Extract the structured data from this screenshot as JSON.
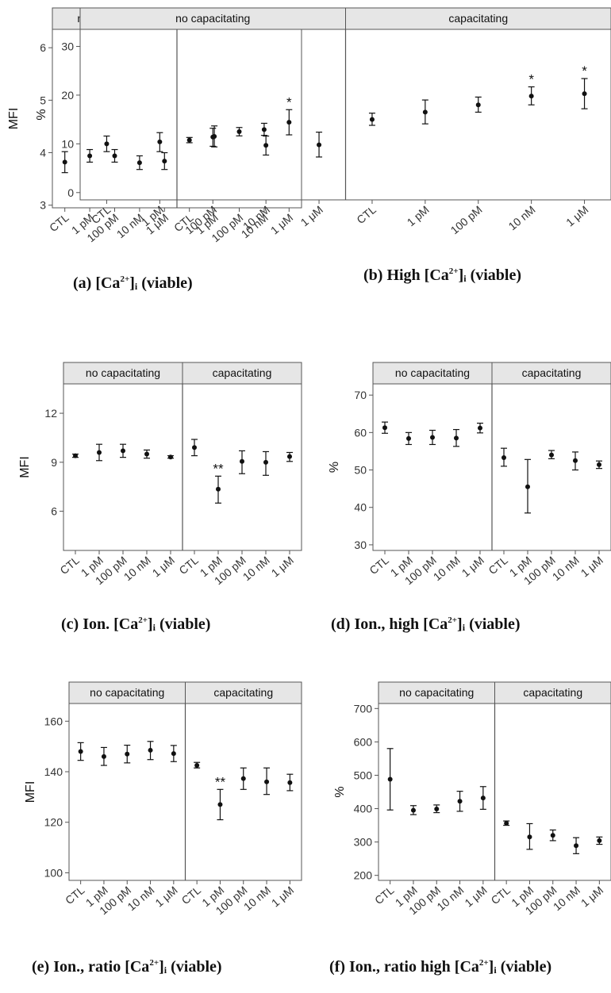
{
  "facets": [
    "no capacitating",
    "capacitating"
  ],
  "chart_data": [
    {
      "id": "a",
      "type": "scatter",
      "ylabel": "MFI",
      "ylim": [
        2.95,
        6.35
      ],
      "yticks": [
        3,
        4,
        5,
        6
      ],
      "categories": [
        "CTL",
        "1 pM",
        "100 pM",
        "10 nM",
        "1 μM"
      ],
      "series": [
        {
          "facet": "no capacitating",
          "values": [
            3.82,
            3.94,
            3.94,
            3.81,
            3.84
          ],
          "lower": [
            3.62,
            3.82,
            3.82,
            3.68,
            3.68
          ],
          "upper": [
            4.02,
            4.06,
            4.06,
            3.94,
            4.0
          ],
          "annotations": [
            "",
            "",
            "",
            "",
            ""
          ]
        },
        {
          "facet": "capacitating",
          "values": [
            4.24,
            4.31,
            4.4,
            4.44,
            4.58
          ],
          "lower": [
            4.19,
            4.11,
            4.32,
            4.33,
            4.34
          ],
          "upper": [
            4.29,
            4.51,
            4.48,
            4.56,
            4.82
          ],
          "annotations": [
            "",
            "",
            "",
            "",
            "*"
          ]
        }
      ],
      "caption": {
        "prefix": "(a) [Ca",
        "sup": "2+",
        "mid": "]",
        "sub": "i",
        "suffix": " (viable)"
      }
    },
    {
      "id": "b",
      "type": "scatter",
      "ylabel": "%",
      "ylim": [
        -1.5,
        33.5
      ],
      "yticks": [
        0,
        10,
        20,
        30
      ],
      "categories": [
        "CTL",
        "1 pM",
        "100 pM",
        "10 nM",
        "1 μM"
      ],
      "series": [
        {
          "facet": "no capacitating",
          "values": [
            10.0,
            10.4,
            11.4,
            9.7,
            9.8
          ],
          "lower": [
            8.4,
            8.4,
            9.5,
            7.7,
            7.3
          ],
          "upper": [
            11.6,
            12.3,
            13.2,
            11.6,
            12.4
          ],
          "annotations": [
            "",
            "",
            "",
            "",
            ""
          ]
        },
        {
          "facet": "capacitating",
          "values": [
            15.0,
            16.5,
            18.0,
            19.8,
            20.3
          ],
          "lower": [
            13.8,
            14.1,
            16.5,
            18.0,
            17.2
          ],
          "upper": [
            16.3,
            19.0,
            19.6,
            21.7,
            23.4
          ],
          "annotations": [
            "",
            "",
            "",
            "*",
            "*"
          ]
        }
      ],
      "caption": {
        "prefix": "(b) High [Ca",
        "sup": "2+",
        "mid": "]",
        "sub": "i",
        "suffix": " (viable)"
      }
    },
    {
      "id": "c",
      "type": "scatter",
      "ylabel": "MFI",
      "ylim": [
        3.6,
        13.8
      ],
      "yticks": [
        6,
        9,
        12
      ],
      "categories": [
        "CTL",
        "1 pM",
        "100 pM",
        "10 nM",
        "1 μM"
      ],
      "series": [
        {
          "facet": "no capacitating",
          "values": [
            9.4,
            9.6,
            9.7,
            9.5,
            9.32
          ],
          "lower": [
            9.3,
            9.1,
            9.3,
            9.25,
            9.25
          ],
          "upper": [
            9.5,
            10.1,
            10.1,
            9.75,
            9.4
          ],
          "annotations": [
            "",
            "",
            "",
            "",
            ""
          ]
        },
        {
          "facet": "capacitating",
          "values": [
            9.9,
            7.35,
            9.05,
            9.0,
            9.35
          ],
          "lower": [
            9.4,
            6.5,
            8.3,
            8.2,
            9.05
          ],
          "upper": [
            10.4,
            8.15,
            9.7,
            9.65,
            9.6
          ],
          "annotations": [
            "",
            "**",
            "",
            "",
            ""
          ]
        }
      ],
      "caption": {
        "prefix": "(c) Ion. [Ca",
        "sup": "2+",
        "mid": "]",
        "sub": "i",
        "suffix": " (viable)"
      }
    },
    {
      "id": "d",
      "type": "scatter",
      "ylabel": "%",
      "ylim": [
        28.5,
        73
      ],
      "yticks": [
        30,
        40,
        50,
        60,
        70
      ],
      "categories": [
        "CTL",
        "1 pM",
        "100 pM",
        "10 nM",
        "1 μM"
      ],
      "series": [
        {
          "facet": "no capacitating",
          "values": [
            61.3,
            58.4,
            58.7,
            58.5,
            61.2
          ],
          "lower": [
            59.8,
            56.8,
            56.8,
            56.3,
            59.9
          ],
          "upper": [
            62.8,
            60.0,
            60.6,
            60.8,
            62.5
          ],
          "annotations": [
            "",
            "",
            "",
            "",
            ""
          ]
        },
        {
          "facet": "capacitating",
          "values": [
            53.3,
            45.5,
            54.0,
            52.5,
            51.4
          ],
          "lower": [
            51.0,
            38.5,
            53.0,
            50.0,
            50.4
          ],
          "upper": [
            55.8,
            52.8,
            55.2,
            54.8,
            52.4
          ],
          "annotations": [
            "",
            "",
            "",
            "",
            ""
          ]
        }
      ],
      "caption": {
        "prefix": "(d) Ion., high [Ca",
        "sup": "2+",
        "mid": "]",
        "sub": "i",
        "suffix": " (viable)"
      }
    },
    {
      "id": "e",
      "type": "scatter",
      "ylabel": "MFI",
      "ylim": [
        97,
        167
      ],
      "yticks": [
        100,
        120,
        140,
        160
      ],
      "categories": [
        "CTL",
        "1 pM",
        "100 pM",
        "10 nM",
        "1 μM"
      ],
      "series": [
        {
          "facet": "no capacitating",
          "values": [
            148.0,
            146.0,
            147.0,
            148.5,
            147.2
          ],
          "lower": [
            144.5,
            142.5,
            143.5,
            144.8,
            144.0
          ],
          "upper": [
            151.5,
            149.6,
            150.5,
            152.0,
            150.4
          ],
          "annotations": [
            "",
            "",
            "",
            "",
            ""
          ]
        },
        {
          "facet": "capacitating",
          "values": [
            142.5,
            127.0,
            137.3,
            136.0,
            135.7
          ],
          "lower": [
            141.5,
            121.0,
            133.0,
            131.0,
            132.5
          ],
          "upper": [
            143.7,
            133.0,
            141.5,
            141.5,
            139.0
          ],
          "annotations": [
            "",
            "**",
            "",
            "",
            ""
          ]
        }
      ],
      "caption": {
        "prefix": "(e) Ion., ratio [Ca",
        "sup": "2+",
        "mid": "]",
        "sub": "i",
        "suffix": " (viable)"
      }
    },
    {
      "id": "f",
      "type": "scatter",
      "ylabel": "%",
      "ylim": [
        185,
        715
      ],
      "yticks": [
        200,
        300,
        400,
        500,
        600,
        700
      ],
      "categories": [
        "CTL",
        "1 pM",
        "100 pM",
        "10 nM",
        "1 μM"
      ],
      "series": [
        {
          "facet": "no capacitating",
          "values": [
            488,
            395,
            399,
            422,
            432
          ],
          "lower": [
            396,
            382,
            388,
            392,
            398
          ],
          "upper": [
            580,
            409,
            411,
            452,
            466
          ],
          "annotations": [
            "",
            "",
            "",
            "",
            ""
          ]
        },
        {
          "facet": "capacitating",
          "values": [
            356,
            315,
            320,
            289,
            304
          ],
          "lower": [
            350,
            278,
            304,
            265,
            293
          ],
          "upper": [
            363,
            355,
            336,
            313,
            315
          ],
          "annotations": [
            "",
            "",
            "",
            "",
            ""
          ]
        }
      ],
      "caption": {
        "prefix": "(f) Ion., ratio high [Ca",
        "sup": "2+",
        "mid": "]",
        "sub": "i",
        "suffix": " (viable)"
      }
    }
  ]
}
